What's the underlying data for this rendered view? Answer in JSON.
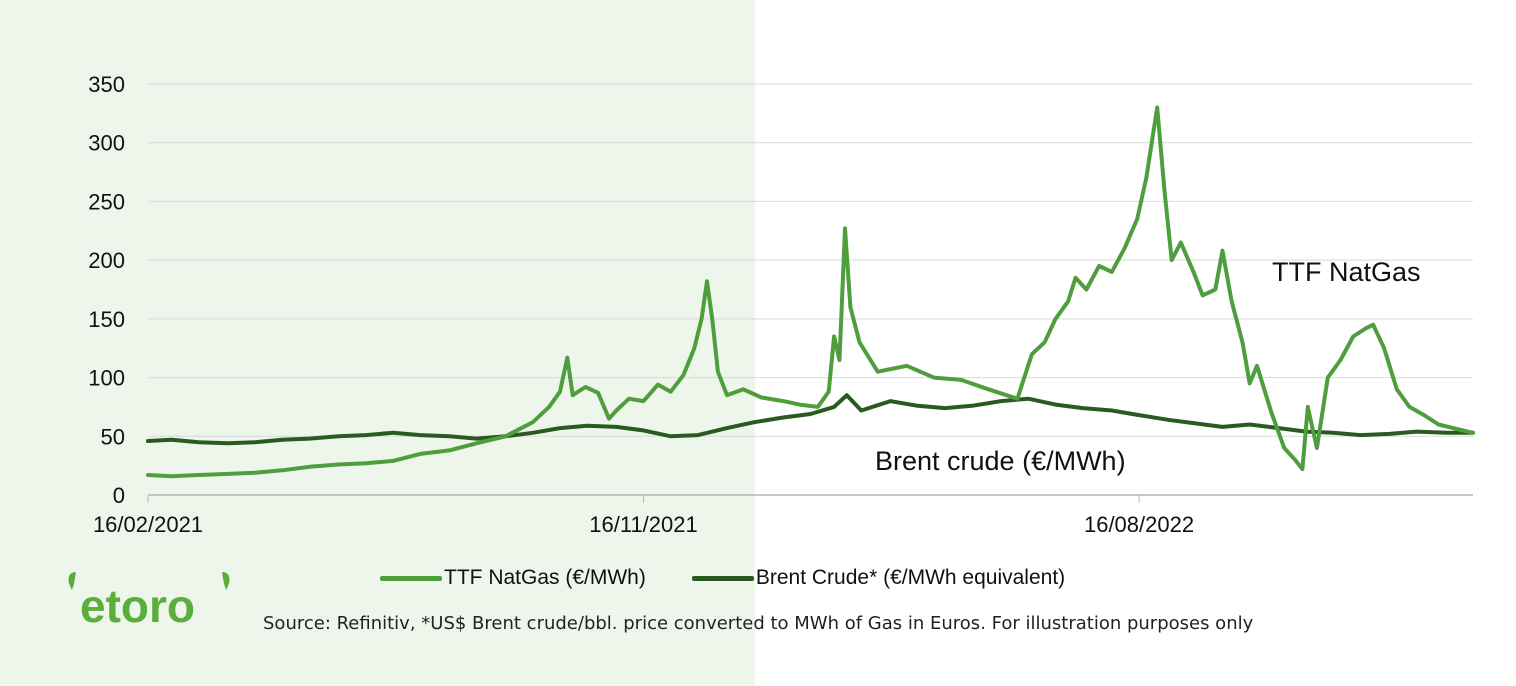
{
  "brand": {
    "logo_text": "etoro",
    "color": "#5aae3c"
  },
  "colors": {
    "natgas": "#4f9e3d",
    "brent": "#2a5a1f",
    "background_panel": "#eef6ec"
  },
  "chart_data": {
    "type": "line",
    "x_axis_type": "date",
    "ylim": [
      0,
      350
    ],
    "yticks": [
      0,
      50,
      100,
      150,
      200,
      250,
      300,
      350
    ],
    "xticks": [
      "16/02/2021",
      "16/11/2021",
      "16/08/2022"
    ],
    "xlim": [
      "2021-02-16",
      "2023-02-16"
    ],
    "grid": "horizontal",
    "legend_position": "bottom",
    "annotations": [
      {
        "text": "TTF NatGas"
      },
      {
        "text": "Brent crude (€/MWh)"
      }
    ],
    "series": [
      {
        "name": "TTF NatGas (€/MWh)",
        "points": [
          [
            "2021-02-16",
            17
          ],
          [
            "2021-03-01",
            16
          ],
          [
            "2021-03-16",
            17
          ],
          [
            "2021-04-01",
            18
          ],
          [
            "2021-04-16",
            19
          ],
          [
            "2021-05-01",
            21
          ],
          [
            "2021-05-16",
            24
          ],
          [
            "2021-06-01",
            26
          ],
          [
            "2021-06-16",
            27
          ],
          [
            "2021-07-01",
            29
          ],
          [
            "2021-07-16",
            35
          ],
          [
            "2021-08-01",
            38
          ],
          [
            "2021-08-16",
            44
          ],
          [
            "2021-09-01",
            50
          ],
          [
            "2021-09-16",
            62
          ],
          [
            "2021-09-25",
            75
          ],
          [
            "2021-10-01",
            88
          ],
          [
            "2021-10-05",
            117
          ],
          [
            "2021-10-08",
            85
          ],
          [
            "2021-10-15",
            92
          ],
          [
            "2021-10-22",
            87
          ],
          [
            "2021-10-28",
            65
          ],
          [
            "2021-11-01",
            72
          ],
          [
            "2021-11-08",
            82
          ],
          [
            "2021-11-16",
            80
          ],
          [
            "2021-11-24",
            94
          ],
          [
            "2021-12-01",
            88
          ],
          [
            "2021-12-08",
            102
          ],
          [
            "2021-12-14",
            125
          ],
          [
            "2021-12-18",
            150
          ],
          [
            "2021-12-21",
            182
          ],
          [
            "2021-12-24",
            148
          ],
          [
            "2021-12-27",
            105
          ],
          [
            "2022-01-01",
            85
          ],
          [
            "2022-01-10",
            90
          ],
          [
            "2022-01-20",
            83
          ],
          [
            "2022-02-01",
            80
          ],
          [
            "2022-02-10",
            77
          ],
          [
            "2022-02-20",
            75
          ],
          [
            "2022-02-26",
            88
          ],
          [
            "2022-03-01",
            135
          ],
          [
            "2022-03-04",
            115
          ],
          [
            "2022-03-07",
            227
          ],
          [
            "2022-03-10",
            160
          ],
          [
            "2022-03-15",
            130
          ],
          [
            "2022-03-25",
            105
          ],
          [
            "2022-04-10",
            110
          ],
          [
            "2022-04-25",
            100
          ],
          [
            "2022-05-10",
            98
          ],
          [
            "2022-05-25",
            90
          ],
          [
            "2022-06-10",
            82
          ],
          [
            "2022-06-18",
            120
          ],
          [
            "2022-06-25",
            130
          ],
          [
            "2022-07-01",
            150
          ],
          [
            "2022-07-08",
            165
          ],
          [
            "2022-07-12",
            185
          ],
          [
            "2022-07-18",
            175
          ],
          [
            "2022-07-25",
            195
          ],
          [
            "2022-08-01",
            190
          ],
          [
            "2022-08-08",
            210
          ],
          [
            "2022-08-15",
            235
          ],
          [
            "2022-08-20",
            270
          ],
          [
            "2022-08-26",
            330
          ],
          [
            "2022-08-30",
            260
          ],
          [
            "2022-09-03",
            200
          ],
          [
            "2022-09-08",
            215
          ],
          [
            "2022-09-15",
            190
          ],
          [
            "2022-09-20",
            170
          ],
          [
            "2022-09-27",
            175
          ],
          [
            "2022-10-01",
            208
          ],
          [
            "2022-10-06",
            165
          ],
          [
            "2022-10-12",
            130
          ],
          [
            "2022-10-16",
            95
          ],
          [
            "2022-10-20",
            110
          ],
          [
            "2022-10-28",
            70
          ],
          [
            "2022-11-04",
            40
          ],
          [
            "2022-11-10",
            30
          ],
          [
            "2022-11-14",
            22
          ],
          [
            "2022-11-17",
            75
          ],
          [
            "2022-11-22",
            40
          ],
          [
            "2022-11-28",
            100
          ],
          [
            "2022-12-05",
            115
          ],
          [
            "2022-12-12",
            135
          ],
          [
            "2022-12-19",
            142
          ],
          [
            "2022-12-23",
            145
          ],
          [
            "2022-12-29",
            125
          ],
          [
            "2023-01-05",
            90
          ],
          [
            "2023-01-12",
            75
          ],
          [
            "2023-01-20",
            68
          ],
          [
            "2023-01-28",
            60
          ],
          [
            "2023-02-05",
            57
          ],
          [
            "2023-02-16",
            53
          ]
        ]
      },
      {
        "name": "Brent Crude* (€/MWh equivalent)",
        "points": [
          [
            "2021-02-16",
            46
          ],
          [
            "2021-03-01",
            47
          ],
          [
            "2021-03-16",
            45
          ],
          [
            "2021-04-01",
            44
          ],
          [
            "2021-04-16",
            45
          ],
          [
            "2021-05-01",
            47
          ],
          [
            "2021-05-16",
            48
          ],
          [
            "2021-06-01",
            50
          ],
          [
            "2021-06-16",
            51
          ],
          [
            "2021-07-01",
            53
          ],
          [
            "2021-07-16",
            51
          ],
          [
            "2021-08-01",
            50
          ],
          [
            "2021-08-16",
            48
          ],
          [
            "2021-09-01",
            50
          ],
          [
            "2021-09-16",
            53
          ],
          [
            "2021-10-01",
            57
          ],
          [
            "2021-10-16",
            59
          ],
          [
            "2021-11-01",
            58
          ],
          [
            "2021-11-16",
            55
          ],
          [
            "2021-12-01",
            50
          ],
          [
            "2021-12-16",
            51
          ],
          [
            "2022-01-01",
            57
          ],
          [
            "2022-01-16",
            62
          ],
          [
            "2022-02-01",
            66
          ],
          [
            "2022-02-16",
            69
          ],
          [
            "2022-03-01",
            75
          ],
          [
            "2022-03-08",
            85
          ],
          [
            "2022-03-16",
            72
          ],
          [
            "2022-04-01",
            80
          ],
          [
            "2022-04-16",
            76
          ],
          [
            "2022-05-01",
            74
          ],
          [
            "2022-05-16",
            76
          ],
          [
            "2022-06-01",
            80
          ],
          [
            "2022-06-16",
            82
          ],
          [
            "2022-07-01",
            77
          ],
          [
            "2022-07-16",
            74
          ],
          [
            "2022-08-01",
            72
          ],
          [
            "2022-08-16",
            68
          ],
          [
            "2022-09-01",
            64
          ],
          [
            "2022-09-16",
            61
          ],
          [
            "2022-10-01",
            58
          ],
          [
            "2022-10-16",
            60
          ],
          [
            "2022-11-01",
            57
          ],
          [
            "2022-11-16",
            54
          ],
          [
            "2022-12-01",
            53
          ],
          [
            "2022-12-16",
            51
          ],
          [
            "2023-01-01",
            52
          ],
          [
            "2023-01-16",
            54
          ],
          [
            "2023-02-01",
            53
          ],
          [
            "2023-02-16",
            53
          ]
        ]
      }
    ]
  },
  "legend": {
    "natgas_label": "TTF NatGas (€/MWh)",
    "brent_label": "Brent Crude* (€/MWh equivalent)"
  },
  "footer": {
    "source": "Source: Refinitiv, *US$ Brent crude/bbl. price converted to MWh of Gas in Euros. For illustration purposes only"
  }
}
